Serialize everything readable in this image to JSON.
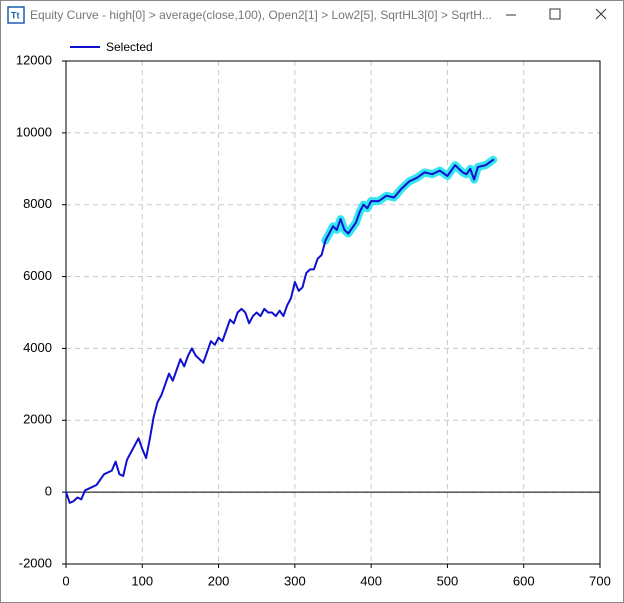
{
  "window_title": "Equity Curve - high[0] > average(close,100), Open2[1] > Low2[5], SqrtHL3[0] > SqrtH...",
  "chart_data": {
    "type": "line",
    "x": [
      0,
      5,
      10,
      15,
      20,
      25,
      30,
      40,
      50,
      60,
      65,
      70,
      75,
      80,
      90,
      95,
      100,
      105,
      110,
      115,
      120,
      125,
      130,
      135,
      140,
      145,
      150,
      155,
      160,
      165,
      170,
      175,
      180,
      185,
      190,
      195,
      200,
      205,
      210,
      215,
      220,
      225,
      230,
      235,
      240,
      245,
      250,
      255,
      260,
      265,
      270,
      275,
      280,
      285,
      290,
      295,
      300,
      305,
      310,
      315,
      320,
      325,
      330,
      335,
      340,
      345,
      350,
      355,
      360,
      365,
      370,
      375,
      380,
      385,
      390,
      395,
      400,
      410,
      420,
      430,
      440,
      450,
      460,
      470,
      480,
      490,
      500,
      510,
      520,
      525,
      530,
      535,
      540,
      550,
      560
    ],
    "series": [
      {
        "name": "Selected",
        "color": "#1010d0",
        "values": [
          0,
          -300,
          -250,
          -150,
          -200,
          50,
          100,
          200,
          500,
          600,
          850,
          500,
          450,
          900,
          1300,
          1500,
          1200,
          950,
          1500,
          2100,
          2500,
          2700,
          3000,
          3300,
          3100,
          3400,
          3700,
          3500,
          3800,
          4000,
          3800,
          3700,
          3600,
          3900,
          4200,
          4100,
          4300,
          4200,
          4500,
          4800,
          4700,
          5000,
          5100,
          5000,
          4700,
          4900,
          5000,
          4900,
          5100,
          5000,
          5000,
          4900,
          5050,
          4900,
          5200,
          5400,
          5850,
          5600,
          5700,
          6100,
          6200,
          6200,
          6500,
          6600,
          7000,
          7200,
          7400,
          7300,
          7600,
          7300,
          7200,
          7350,
          7500,
          7800,
          8000,
          7900,
          8100,
          8100,
          8250,
          8200,
          8450,
          8650,
          8750,
          8900,
          8850,
          8950,
          8800,
          9100,
          8900,
          8850,
          9000,
          8700,
          9050,
          9100,
          9250
        ]
      },
      {
        "color": "#33e6f0",
        "values": [
          null,
          null,
          null,
          null,
          null,
          null,
          null,
          null,
          null,
          null,
          null,
          null,
          null,
          null,
          null,
          null,
          null,
          null,
          null,
          null,
          null,
          null,
          null,
          null,
          null,
          null,
          null,
          null,
          null,
          null,
          null,
          null,
          null,
          null,
          null,
          null,
          null,
          null,
          null,
          null,
          null,
          null,
          null,
          null,
          null,
          null,
          null,
          null,
          null,
          null,
          null,
          null,
          null,
          null,
          null,
          null,
          null,
          null,
          null,
          null,
          null,
          null,
          null,
          null,
          7000,
          7200,
          7400,
          7300,
          7600,
          7300,
          7200,
          7350,
          7500,
          7800,
          8000,
          7900,
          8100,
          8100,
          8250,
          8200,
          8450,
          8650,
          8750,
          8900,
          8850,
          8950,
          8800,
          9100,
          8900,
          8850,
          9000,
          8700,
          9050,
          9100,
          9250
        ]
      }
    ],
    "xlim": [
      0,
      700
    ],
    "xticks": [
      0,
      100,
      200,
      300,
      400,
      500,
      600,
      700
    ],
    "ylim": [
      -2000,
      12000
    ],
    "yticks": [
      -2000,
      0,
      2000,
      4000,
      6000,
      8000,
      10000,
      12000
    ],
    "grid": true
  }
}
